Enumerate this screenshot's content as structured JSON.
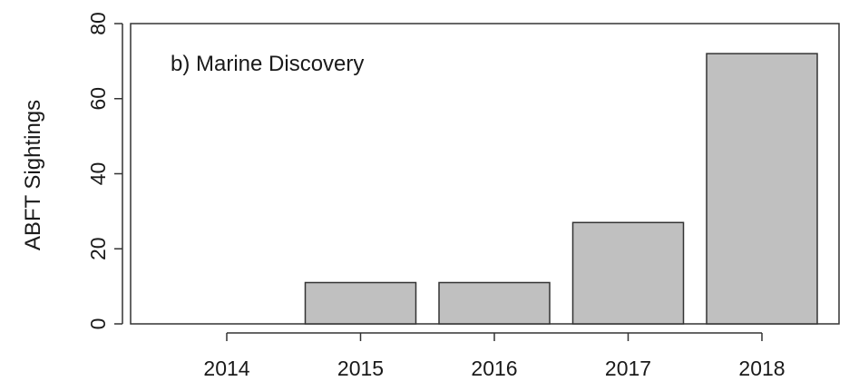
{
  "chart_data": {
    "type": "bar",
    "panel_label": "b) Marine Discovery",
    "categories": [
      "2014",
      "2015",
      "2016",
      "2017",
      "2018"
    ],
    "values": [
      0,
      11,
      11,
      27,
      72
    ],
    "xlabel": "",
    "ylabel": "ABFT Sightings",
    "ylim": [
      0,
      80
    ],
    "yticks": [
      "0",
      "20",
      "40",
      "60",
      "80"
    ],
    "grid": false,
    "bar_color": "#c0c0c0",
    "bar_edge_color": "#333333"
  }
}
